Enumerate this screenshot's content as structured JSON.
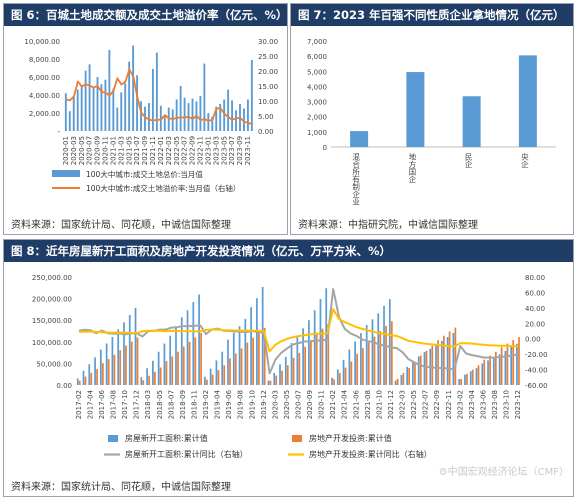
{
  "panels": {
    "fig6": {
      "title": "图 6：百城土地成交额及成交土地溢价率（亿元、%）",
      "source": "资料来源：国家统计局、同花顺，中诚信国际整理"
    },
    "fig7": {
      "title": "图 7：2023 年百强不同性质企业拿地情况（亿元）",
      "source": "资料来源：中指研究院，中诚信国际整理"
    },
    "fig8": {
      "title": "图 8：近年房屋新开工面积及房地产开发投资情况（亿元、万平方米、%）",
      "source": "资料来源：国家统计局、同花顺，中诚信国际整理"
    }
  },
  "watermark": "⚙中国宏观经济论坛（CMF）",
  "colors": {
    "header": "#1f3d66",
    "blue": "#5b9bd5",
    "orange": "#ed7d31",
    "gray": "#a5a5a5",
    "gold": "#ffc000"
  },
  "chart_data": [
    {
      "id": "fig6",
      "type": "bar",
      "x": [
        "2020-01",
        "2020-02",
        "2020-03",
        "2020-04",
        "2020-05",
        "2020-06",
        "2020-07",
        "2020-08",
        "2020-09",
        "2020-10",
        "2020-11",
        "2020-12",
        "2021-01",
        "2021-02",
        "2021-03",
        "2021-04",
        "2021-05",
        "2021-06",
        "2021-07",
        "2021-08",
        "2021-09",
        "2021-10",
        "2021-11",
        "2021-12",
        "2022-01",
        "2022-02",
        "2022-03",
        "2022-04",
        "2022-05",
        "2022-06",
        "2022-07",
        "2022-08",
        "2022-09",
        "2022-10",
        "2022-11",
        "2022-12",
        "2023-01",
        "2023-02",
        "2023-03",
        "2023-04",
        "2023-05",
        "2023-06",
        "2023-07",
        "2023-08",
        "2023-09",
        "2023-10",
        "2023-11",
        "2023-12"
      ],
      "xtick_labels": [
        "2020-01",
        "2020-03",
        "2020-05",
        "2020-07",
        "2020-09",
        "2020-11",
        "2021-01",
        "2021-03",
        "2021-05",
        "2021-07",
        "2021-09",
        "2021-11",
        "2022-01",
        "2022-03",
        "2022-05",
        "2022-07",
        "2022-09",
        "2022-11",
        "2023-01",
        "2023-03",
        "2023-05",
        "2023-07",
        "2023-09",
        "2023-11"
      ],
      "series": [
        {
          "name": "100大中城市:成交土地总价:当月值",
          "axis": "left",
          "values": [
            4200,
            2200,
            3900,
            4600,
            5100,
            6700,
            7400,
            4800,
            6000,
            5200,
            5700,
            9000,
            4700,
            2600,
            4300,
            5300,
            7700,
            9500,
            6200,
            3300,
            2700,
            3100,
            6900,
            8700,
            2800,
            1700,
            2600,
            2400,
            3500,
            5000,
            3700,
            3100,
            3600,
            3300,
            3900,
            7500,
            2000,
            1600,
            2700,
            3000,
            3500,
            4600,
            3400,
            2300,
            3000,
            2500,
            3500,
            7900
          ]
        },
        {
          "name": "100大中城市:成交土地溢价率:当月值（右轴）",
          "axis": "right",
          "values": [
            10.5,
            10.2,
            11.5,
            16.5,
            14.8,
            15.6,
            15.1,
            14.5,
            15.0,
            13.0,
            12.8,
            11.8,
            13.4,
            17.6,
            15.5,
            16.4,
            20.5,
            18.2,
            11.5,
            6.1,
            4.6,
            3.8,
            3.5,
            3.7,
            3.8,
            5.3,
            4.2,
            4.0,
            4.4,
            4.5,
            4.5,
            4.8,
            4.0,
            5.1,
            3.6,
            4.0,
            3.4,
            3.7,
            7.5,
            7.6,
            5.8,
            4.6,
            3.8,
            4.2,
            4.4,
            3.1,
            2.7,
            2.3
          ]
        }
      ],
      "yticks_left": [
        "10,000.00",
        "8,000.00",
        "6,000.00",
        "4,000.00",
        "2,000.00",
        "-"
      ],
      "yticks_right": [
        "30.00",
        "25.00",
        "20.00",
        "15.00",
        "10.00",
        "5.00",
        "0.00"
      ],
      "ylim_left": [
        0,
        10000
      ],
      "ylim_right": [
        0,
        30
      ]
    },
    {
      "id": "fig7",
      "type": "bar",
      "categories": [
        "混合所有制企业",
        "地方国企",
        "民企",
        "央企"
      ],
      "values": [
        1050,
        4950,
        3350,
        6050
      ],
      "yticks": [
        "7,000",
        "6,000",
        "5,000",
        "4,000",
        "3,000",
        "2,000",
        "1,000",
        "0"
      ],
      "ylim": [
        0,
        7000
      ]
    },
    {
      "id": "fig8",
      "type": "bar",
      "x": [
        "2017-02",
        "2017-03",
        "2017-04",
        "2017-05",
        "2017-06",
        "2017-07",
        "2017-08",
        "2017-09",
        "2017-10",
        "2017-11",
        "2017-12",
        "2018-02",
        "2018-03",
        "2018-04",
        "2018-05",
        "2018-06",
        "2018-07",
        "2018-08",
        "2018-09",
        "2018-10",
        "2018-11",
        "2018-12",
        "2019-02",
        "2019-03",
        "2019-04",
        "2019-05",
        "2019-06",
        "2019-07",
        "2019-08",
        "2019-09",
        "2019-10",
        "2019-11",
        "2019-12",
        "2020-02",
        "2020-03",
        "2020-04",
        "2020-05",
        "2020-06",
        "2020-07",
        "2020-08",
        "2020-09",
        "2020-10",
        "2020-11",
        "2020-12",
        "2021-02",
        "2021-03",
        "2021-04",
        "2021-05",
        "2021-06",
        "2021-07",
        "2021-08",
        "2021-09",
        "2021-10",
        "2021-11",
        "2021-12",
        "2022-02",
        "2022-03",
        "2022-04",
        "2022-05",
        "2022-06",
        "2022-07",
        "2022-08",
        "2022-09",
        "2022-10",
        "2022-11",
        "2022-12",
        "2023-02",
        "2023-03",
        "2023-04",
        "2023-05",
        "2023-06",
        "2023-07",
        "2023-08",
        "2023-09",
        "2023-10",
        "2023-11",
        "2023-12"
      ],
      "xtick_labels": [
        "2017-02",
        "2017-04",
        "2017-06",
        "2017-08",
        "2017-10",
        "2017-12",
        "2018-03",
        "2018-05",
        "2018-07",
        "2018-09",
        "2018-11",
        "2019-02",
        "2019-04",
        "2019-06",
        "2019-08",
        "2019-10",
        "2019-12",
        "2020-03",
        "2020-05",
        "2020-07",
        "2020-09",
        "2020-11",
        "2021-02",
        "2021-04",
        "2021-06",
        "2021-08",
        "2021-10",
        "2021-12",
        "2022-03",
        "2022-05",
        "2022-07",
        "2022-09",
        "2022-11",
        "2023-02",
        "2023-04",
        "2023-06",
        "2023-08",
        "2023-10",
        "2023-12"
      ],
      "series": [
        {
          "name": "房屋新开工面积:累计值",
          "axis": "left",
          "values": [
            15000,
            33000,
            48000,
            64000,
            82000,
            96000,
            111000,
            129000,
            145000,
            162000,
            178600,
            18000,
            39000,
            56000,
            77000,
            96000,
            114000,
            136000,
            157000,
            173000,
            192000,
            209300,
            19000,
            38000,
            57000,
            77000,
            105000,
            121000,
            136000,
            153000,
            180000,
            201000,
            227000,
            10000,
            28000,
            48000,
            65000,
            97000,
            113000,
            131000,
            150000,
            173000,
            199000,
            224000,
            17000,
            36000,
            58000,
            82000,
            101000,
            120000,
            139000,
            152000,
            166000,
            183000,
            198900,
            10000,
            23000,
            42000,
            53000,
            66000,
            76000,
            84000,
            94000,
            102000,
            111000,
            120600,
            13600,
            24000,
            32000,
            39000,
            50000,
            57000,
            64000,
            71000,
            79000,
            88000,
            95400
          ]
        },
        {
          "name": "房地产开发投资:累计值",
          "axis": "left",
          "values": [
            9800,
            19300,
            27700,
            36800,
            50600,
            60000,
            69700,
            80600,
            91500,
            100400,
            109800,
            11000,
            21300,
            30600,
            40600,
            55500,
            66000,
            77000,
            88900,
            99500,
            110100,
            120300,
            12100,
            23800,
            34200,
            45600,
            61600,
            72900,
            84600,
            98000,
            109600,
            121300,
            132200,
            10100,
            21900,
            33100,
            45900,
            62800,
            74100,
            88500,
            103500,
            116700,
            130500,
            141400,
            13300,
            27600,
            40200,
            54300,
            72200,
            85400,
            98800,
            112000,
            124900,
            137000,
            147600,
            14500,
            27800,
            39200,
            52100,
            68300,
            79500,
            90800,
            103600,
            113900,
            123900,
            132900,
            13700,
            26000,
            35500,
            45700,
            58600,
            67700,
            76900,
            87300,
            95900,
            104000,
            110900
          ]
        },
        {
          "name": "房屋新开工面积:累计同比（右轴）",
          "axis": "right",
          "values": [
            10.4,
            11.6,
            11.1,
            7.1,
            10.6,
            7.2,
            6.4,
            7.0,
            5.6,
            6.8,
            7.0,
            2.9,
            9.7,
            10.3,
            11.8,
            11.8,
            14.4,
            14.9,
            16.4,
            16.3,
            16.8,
            17.2,
            6.0,
            11.9,
            13.1,
            10.5,
            10.1,
            9.5,
            8.9,
            8.6,
            10.0,
            8.6,
            8.5,
            -44.9,
            -27.2,
            -18.4,
            -12.8,
            -7.6,
            -5.7,
            -3.6,
            -3.4,
            -2.7,
            -2.0,
            -1.2,
            64.3,
            28.2,
            12.8,
            6.9,
            3.8,
            -0.9,
            -3.2,
            -4.5,
            -7.7,
            -9.1,
            -11.4,
            -12.2,
            -17.5,
            -26.3,
            -30.6,
            -34.4,
            -36.1,
            -37.2,
            -38.0,
            -37.8,
            -38.9,
            -39.4,
            -9.4,
            -19.2,
            -21.2,
            -22.6,
            -24.3,
            -24.5,
            -24.4,
            -23.4,
            -23.2,
            -21.2,
            -20.4
          ]
        },
        {
          "name": "房地产开发投资:累计同比（右轴）",
          "axis": "right",
          "values": [
            8.9,
            9.1,
            9.3,
            8.8,
            8.5,
            7.9,
            7.9,
            8.1,
            7.8,
            7.5,
            7.0,
            9.9,
            10.4,
            10.3,
            10.2,
            9.7,
            10.2,
            10.1,
            9.9,
            9.7,
            9.7,
            9.5,
            11.6,
            11.8,
            11.9,
            11.2,
            10.9,
            10.6,
            10.5,
            10.5,
            10.3,
            10.2,
            9.9,
            -16.3,
            -7.7,
            -3.3,
            -0.3,
            1.9,
            3.4,
            4.6,
            5.6,
            6.3,
            6.8,
            7.0,
            38.3,
            25.6,
            21.6,
            18.3,
            15.0,
            12.7,
            10.9,
            8.8,
            7.2,
            6.0,
            4.4,
            3.7,
            0.7,
            -2.7,
            -4.0,
            -5.4,
            -6.4,
            -7.4,
            -8.0,
            -8.8,
            -9.8,
            -10.0,
            -5.7,
            -5.8,
            -6.2,
            -7.2,
            -7.9,
            -8.5,
            -8.8,
            -9.1,
            -9.3,
            -9.4,
            -9.6
          ]
        }
      ],
      "yticks_left": [
        "250,000.00",
        "200,000.00",
        "150,000.00",
        "100,000.00",
        "50,000.00",
        "0.00"
      ],
      "yticks_right": [
        "80.00",
        "60.00",
        "40.00",
        "20.00",
        "0.00",
        "-20.00",
        "-40.00",
        "-60.00"
      ],
      "ylim_left": [
        0,
        250000
      ],
      "ylim_right": [
        -60,
        80
      ]
    }
  ]
}
